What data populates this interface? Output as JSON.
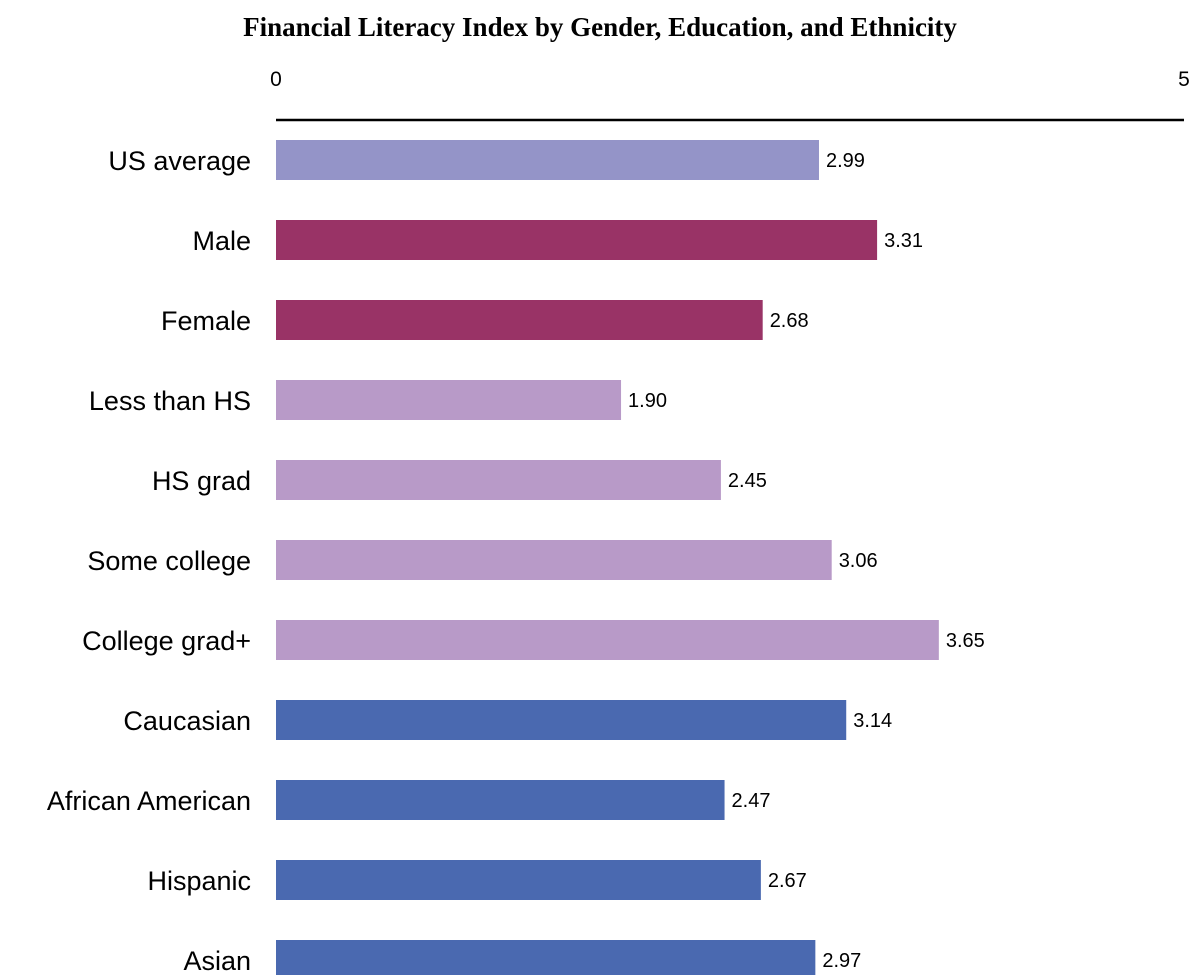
{
  "chart_data": {
    "type": "bar",
    "orientation": "horizontal",
    "title": "Financial Literacy Index by Gender, Education, and Ethnicity",
    "xlabel": "",
    "ylabel": "",
    "xlim": [
      0,
      5
    ],
    "x_ticks": [
      "0",
      "5"
    ],
    "axis_position": "top",
    "grid": false,
    "categories": [
      "US average",
      "Male",
      "Female",
      "Less than HS",
      "HS grad",
      "Some college",
      "College grad+",
      "Caucasian",
      "African American",
      "Hispanic",
      "Asian"
    ],
    "values": [
      2.99,
      3.31,
      2.68,
      1.9,
      2.45,
      3.06,
      3.65,
      3.14,
      2.47,
      2.67,
      2.97
    ],
    "value_labels": [
      "2.99",
      "3.31",
      "2.68",
      "1.90",
      "2.45",
      "3.06",
      "3.65",
      "3.14",
      "2.47",
      "2.67",
      "2.97"
    ],
    "colors": [
      "#9494c8",
      "#993366",
      "#993366",
      "#b89ac8",
      "#b89ac8",
      "#b89ac8",
      "#b89ac8",
      "#4a69b0",
      "#4a69b0",
      "#4a69b0",
      "#4a69b0"
    ]
  }
}
